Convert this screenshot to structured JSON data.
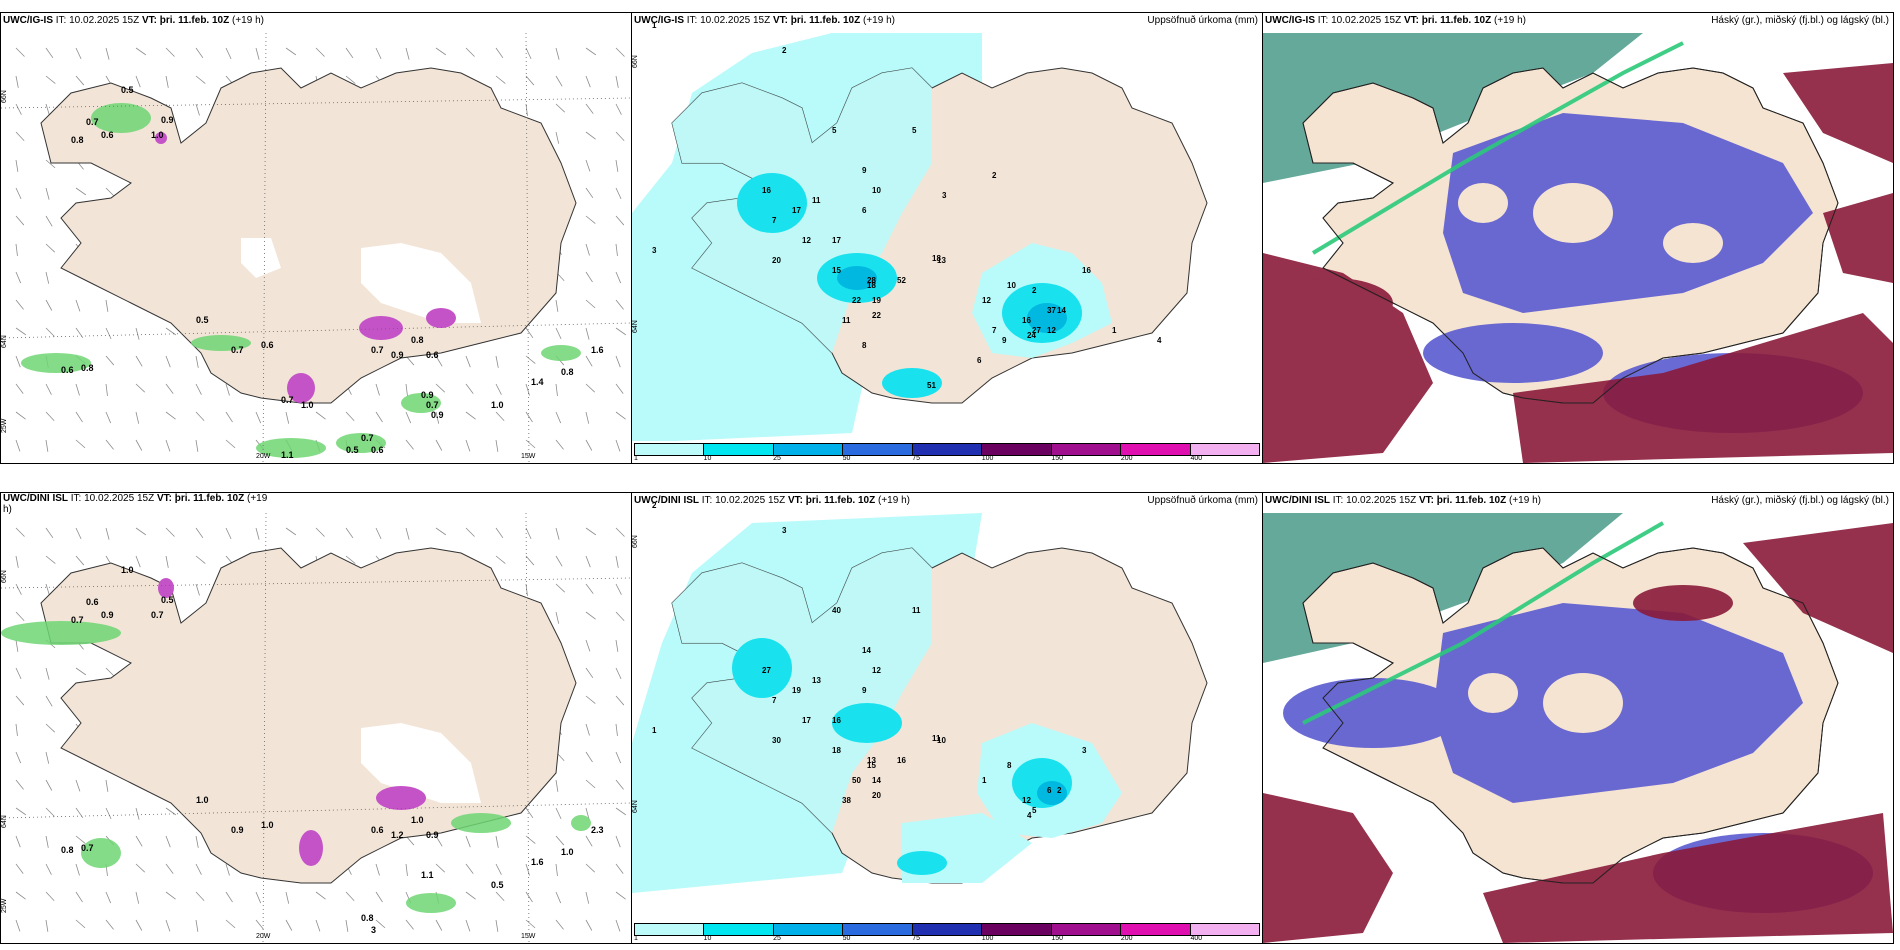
{
  "top": {
    "wind": {
      "header_model": "UWC/IG-IS",
      "header_it": "IT: 10.02.2025 15Z",
      "header_vt_label": "VT:",
      "header_vt": "þri. 11.feb. 10Z",
      "header_lead": "(+19 h)",
      "lat_labels": [
        "66N",
        "64N"
      ],
      "lon_labels": [
        "25W",
        "20W",
        "15W"
      ],
      "values": [
        "0.5",
        "0.7",
        "0.6",
        "0.8",
        "0.9",
        "0.6",
        "1.0",
        "0.5",
        "0.7",
        "0.6",
        "0.8",
        "0.7",
        "0.9",
        "0.8",
        "0.6",
        "1.6",
        "1.4",
        "0.8",
        "0.9",
        "1.0",
        "0.7",
        "0.6",
        "1.1",
        "0.5",
        "0.7",
        "0.9",
        "0.7",
        "1.0"
      ]
    },
    "precip": {
      "header_model": "UWC/IG-IS",
      "header_it": "IT: 10.02.2025 15Z",
      "header_vt_label": "VT:",
      "header_vt": "þri. 11.feb. 10Z",
      "header_lead": "(+19 h)",
      "title_right": "Uppsöfnuð úrkoma (mm)",
      "lat_labels": [
        "66N",
        "64N"
      ],
      "values": [
        "1",
        "2",
        "3",
        "7",
        "6",
        "5",
        "9",
        "10",
        "11",
        "12",
        "15",
        "17",
        "16",
        "20",
        "22",
        "17",
        "18",
        "19",
        "28",
        "22",
        "52",
        "11",
        "13",
        "18",
        "16",
        "24",
        "27",
        "37",
        "10",
        "12",
        "14",
        "16",
        "5",
        "8",
        "9",
        "2",
        "1",
        "4",
        "51",
        "12",
        "6",
        "7",
        "3",
        "2"
      ]
    },
    "cloud": {
      "header_model": "UWC/IG-IS",
      "header_it": "IT: 10.02.2025 15Z",
      "header_vt_label": "VT:",
      "header_vt": "þri. 11.feb. 10Z",
      "header_lead": "(+19 h)",
      "title_right": "Háský (gr.), miðský (fj.bl.) og lágský (bl.)"
    }
  },
  "bottom": {
    "wind": {
      "header_model": "UWC/DINI ISL",
      "header_it": "IT: 10.02.2025 15Z",
      "header_vt_label": "VT:",
      "header_vt": "þri. 11.feb. 10Z",
      "header_lead": "(+19",
      "header_lead2": "h)",
      "lat_labels": [
        "66N",
        "64N"
      ],
      "lon_labels": [
        "25W",
        "20W",
        "15W"
      ],
      "values": [
        "1.0",
        "0.6",
        "0.9",
        "0.7",
        "0.5",
        "1.0",
        "0.7",
        "1.0",
        "0.9",
        "0.8",
        "0.7",
        "0.6",
        "1.2",
        "1.0",
        "0.9",
        "2.3",
        "1.6",
        "1.0",
        "1.1",
        "0.5",
        "0.8",
        "3"
      ]
    },
    "precip": {
      "header_model": "UWC/DINI ISL",
      "header_it": "IT: 10.02.2025 15Z",
      "header_vt_label": "VT:",
      "header_vt": "þri. 11.feb. 10Z",
      "header_lead": "(+19 h)",
      "title_right": "Uppsöfnuð úrkoma (mm)",
      "lat_labels": [
        "66N",
        "64N"
      ],
      "values": [
        "2",
        "3",
        "1",
        "7",
        "9",
        "11",
        "14",
        "12",
        "13",
        "17",
        "18",
        "19",
        "27",
        "30",
        "50",
        "16",
        "15",
        "14",
        "13",
        "20",
        "16",
        "38",
        "10",
        "11",
        "12",
        "4",
        "5",
        "6",
        "8",
        "1",
        "2",
        "3",
        "40"
      ]
    },
    "cloud": {
      "header_model": "UWC/DINI ISL",
      "header_it": "IT: 10.02.2025 15Z",
      "header_vt_label": "VT:",
      "header_vt": "þri. 11.feb. 10Z",
      "header_lead": "(+19 h)",
      "title_right": "Háský (gr.), miðský (fj.bl.) og lágský (bl.)"
    }
  },
  "colorbar": {
    "labels": [
      "1",
      "10",
      "25",
      "50",
      "75",
      "100",
      "150",
      "200",
      "400"
    ],
    "colors": [
      "#bdfbfb",
      "#00e6f0",
      "#00b0e8",
      "#2a6be0",
      "#2030b0",
      "#6a0060",
      "#a0108e",
      "#e010b0",
      "#f3b0f0"
    ]
  },
  "colors": {
    "land": "#f2e4d6",
    "land_cloud": "#f5e4d2",
    "sea_precip": "#b9fafa",
    "precip_mid": "#19e2ee",
    "precip_dark": "#00b8e0",
    "green": "#6fd673",
    "green_dark": "#1e7a2a",
    "magenta": "#c553c8",
    "cloud_teal": "#4a9a8a",
    "cloud_blue": "#5a5ad0",
    "cloud_maroon": "#8a1a3a"
  }
}
